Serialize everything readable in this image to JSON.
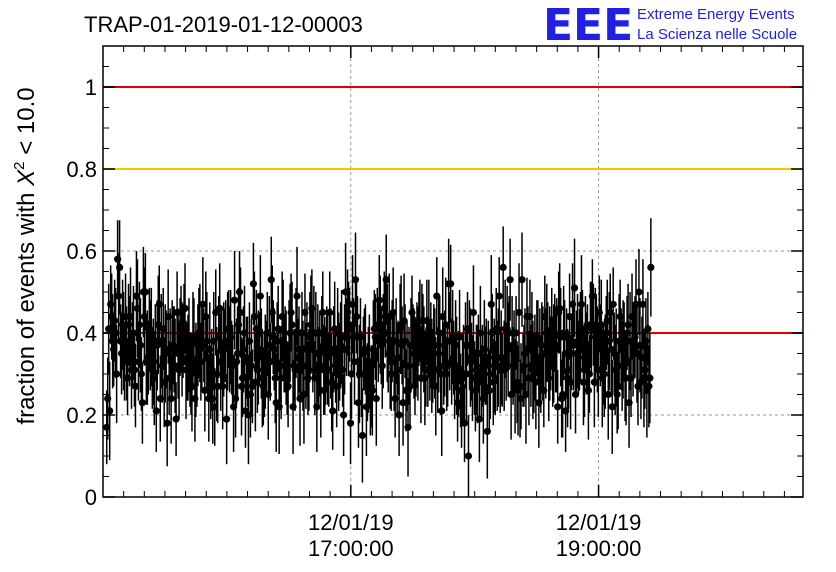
{
  "chart_data": {
    "type": "scatter",
    "title": "TRAP-01-2019-01-12-00003",
    "ylabel_prefix": "fraction of events with ",
    "ylabel_symbol": "X",
    "ylabel_exp": "2",
    "ylabel_suffix": " < 10.0",
    "ylim": [
      0,
      1.1
    ],
    "yticks": [
      "0",
      "0.2",
      "0.4",
      "0.6",
      "0.8",
      "1"
    ],
    "ytick_values": [
      0,
      0.2,
      0.4,
      0.6,
      0.8,
      1.0
    ],
    "xlim_hours": [
      15.0,
      20.65
    ],
    "xticks": [
      {
        "hour": 17.0,
        "date": "12/01/19",
        "time": "17:00:00"
      },
      {
        "hour": 19.0,
        "date": "12/01/19",
        "time": "19:00:00"
      }
    ],
    "grid": true,
    "reference_lines": [
      {
        "y": 1.0,
        "color": "#e00000"
      },
      {
        "y": 0.8,
        "color": "#ffc000"
      },
      {
        "y": 0.4,
        "color": "#e00000"
      }
    ],
    "point_color": "#000000",
    "series": [
      {
        "hours_start": 15.03,
        "hours_step": 0.008,
        "values": [
          0.17,
          0.24,
          0.41,
          0.21,
          0.47,
          0.44,
          0.38,
          0.36,
          0.43,
          0.4,
          0.3,
          0.58,
          0.49,
          0.56,
          0.38,
          0.35,
          0.42,
          0.38,
          0.33,
          0.44,
          0.35,
          0.29,
          0.42,
          0.38,
          0.44,
          0.31,
          0.37,
          0.4,
          0.31,
          0.27,
          0.49,
          0.46,
          0.33,
          0.42,
          0.37,
          0.3,
          0.23,
          0.5,
          0.44,
          0.5,
          0.33,
          0.34,
          0.34,
          0.41,
          0.37,
          0.39,
          0.31,
          0.33,
          0.29,
          0.38,
          0.21,
          0.37,
          0.42,
          0.47,
          0.24,
          0.38,
          0.32,
          0.41,
          0.28,
          0.35,
          0.36,
          0.18,
          0.44,
          0.29,
          0.36,
          0.24,
          0.36,
          0.37,
          0.36,
          0.32,
          0.19,
          0.45,
          0.35,
          0.31,
          0.39,
          0.41,
          0.36,
          0.38,
          0.42,
          0.46,
          0.31,
          0.33,
          0.34,
          0.37,
          0.31,
          0.3,
          0.27,
          0.38,
          0.39,
          0.24,
          0.31,
          0.31,
          0.37,
          0.4,
          0.4,
          0.33,
          0.37,
          0.47,
          0.37,
          0.26,
          0.44,
          0.38,
          0.34,
          0.24,
          0.36,
          0.28,
          0.31,
          0.24,
          0.38,
          0.22,
          0.45,
          0.3,
          0.27,
          0.39,
          0.46,
          0.33,
          0.37,
          0.27,
          0.36,
          0.37,
          0.38,
          0.19,
          0.38,
          0.41,
          0.36,
          0.39,
          0.34,
          0.32,
          0.22,
          0.48,
          0.24,
          0.33,
          0.35,
          0.42,
          0.5,
          0.45,
          0.27,
          0.29,
          0.36,
          0.4,
          0.21,
          0.34,
          0.33,
          0.2,
          0.38,
          0.25,
          0.32,
          0.27,
          0.52,
          0.44,
          0.28,
          0.41,
          0.31,
          0.34,
          0.36,
          0.49,
          0.35,
          0.29,
          0.27,
          0.3,
          0.33,
          0.34,
          0.4,
          0.25,
          0.37,
          0.33,
          0.53,
          0.45,
          0.39,
          0.36,
          0.29,
          0.23,
          0.38,
          0.41,
          0.22,
          0.32,
          0.29,
          0.44,
          0.41,
          0.35,
          0.36,
          0.34,
          0.29,
          0.27,
          0.37,
          0.4,
          0.45,
          0.42,
          0.22,
          0.32,
          0.31,
          0.4,
          0.49,
          0.34,
          0.36,
          0.24,
          0.32,
          0.4,
          0.32,
          0.25,
          0.45,
          0.32,
          0.36,
          0.29,
          0.31,
          0.39,
          0.42,
          0.46,
          0.36,
          0.4,
          0.29,
          0.4,
          0.22,
          0.35,
          0.32,
          0.35,
          0.26,
          0.4,
          0.45,
          0.31,
          0.32,
          0.32,
          0.36,
          0.34,
          0.31,
          0.45,
          0.35,
          0.28,
          0.21,
          0.36,
          0.41,
          0.32,
          0.27,
          0.4,
          0.33,
          0.33,
          0.37,
          0.39,
          0.31,
          0.2,
          0.36,
          0.5,
          0.39,
          0.45,
          0.41,
          0.42,
          0.18,
          0.3,
          0.47,
          0.39,
          0.33,
          0.53,
          0.44,
          0.39,
          0.23,
          0.3,
          0.39,
          0.3,
          0.15,
          0.35,
          0.36,
          0.36,
          0.22,
          0.28,
          0.31,
          0.33,
          0.24,
          0.27,
          0.26,
          0.36,
          0.41,
          0.39,
          0.24,
          0.42,
          0.38,
          0.48,
          0.42,
          0.37,
          0.32,
          0.38,
          0.46,
          0.44,
          0.53,
          0.4,
          0.35,
          0.44,
          0.33,
          0.3,
          0.38,
          0.45,
          0.33,
          0.24,
          0.38,
          0.31,
          0.34,
          0.2,
          0.41,
          0.42,
          0.37,
          0.23,
          0.43,
          0.38,
          0.26,
          0.32,
          0.17,
          0.32,
          0.27,
          0.37,
          0.45,
          0.37,
          0.35,
          0.32,
          0.34,
          0.37,
          0.35,
          0.41,
          0.43,
          0.29,
          0.4,
          0.4,
          0.36,
          0.29,
          0.31,
          0.43,
          0.33,
          0.41,
          0.33,
          0.37,
          0.32,
          0.32,
          0.37,
          0.35,
          0.27,
          0.49,
          0.31,
          0.37,
          0.4,
          0.3,
          0.21,
          0.44,
          0.32,
          0.35,
          0.42,
          0.3,
          0.32,
          0.52,
          0.38,
          0.52,
          0.33,
          0.39,
          0.34,
          0.29,
          0.37,
          0.32,
          0.23,
          0.3,
          0.39,
          0.26,
          0.22,
          0.29,
          0.3,
          0.18,
          0.37,
          0.3,
          0.41,
          0.1,
          0.37,
          0.34,
          0.33,
          0.29,
          0.45,
          0.29,
          0.26,
          0.31,
          0.3,
          0.35,
          0.19,
          0.4,
          0.28,
          0.32,
          0.24,
          0.36,
          0.32,
          0.33,
          0.16,
          0.34,
          0.26,
          0.3,
          0.47,
          0.4,
          0.28,
          0.32,
          0.29,
          0.41,
          0.32,
          0.34,
          0.49,
          0.31,
          0.34,
          0.31,
          0.56,
          0.32,
          0.41,
          0.33,
          0.41,
          0.36,
          0.4,
          0.53,
          0.25,
          0.37,
          0.32,
          0.35,
          0.27,
          0.4,
          0.28,
          0.26,
          0.45,
          0.24,
          0.27,
          0.53,
          0.31,
          0.32,
          0.35,
          0.25,
          0.44,
          0.36,
          0.29,
          0.44,
          0.32,
          0.39,
          0.31,
          0.3,
          0.34,
          0.28,
          0.39,
          0.38,
          0.23,
          0.34,
          0.3,
          0.37,
          0.35,
          0.26,
          0.44,
          0.35,
          0.4,
          0.38,
          0.29,
          0.35,
          0.35,
          0.41,
          0.33,
          0.35,
          0.4,
          0.36,
          0.37,
          0.22,
          0.45,
          0.46,
          0.39,
          0.24,
          0.25,
          0.4,
          0.39,
          0.21,
          0.35,
          0.29,
          0.31,
          0.44,
          0.28,
          0.35,
          0.47,
          0.37,
          0.51,
          0.25,
          0.35,
          0.38,
          0.34,
          0.36,
          0.39,
          0.47,
          0.41,
          0.28,
          0.31,
          0.4,
          0.35,
          0.36,
          0.26,
          0.3,
          0.42,
          0.41,
          0.49,
          0.42,
          0.28,
          0.39,
          0.4,
          0.36,
          0.31,
          0.45,
          0.37,
          0.42,
          0.29,
          0.32,
          0.3,
          0.33,
          0.4,
          0.43,
          0.25,
          0.38,
          0.45,
          0.36,
          0.22,
          0.47,
          0.35,
          0.31,
          0.34,
          0.25,
          0.27,
          0.38,
          0.44,
          0.36,
          0.32,
          0.36,
          0.38,
          0.29,
          0.29,
          0.4,
          0.42,
          0.23,
          0.38,
          0.29,
          0.44,
          0.36,
          0.38,
          0.39,
          0.47,
          0.35,
          0.27,
          0.5,
          0.37,
          0.28,
          0.34,
          0.47,
          0.29,
          0.31,
          0.38,
          0.26,
          0.41,
          0.27,
          0.29,
          0.56
        ]
      }
    ]
  },
  "logo": {
    "letters": "EEE",
    "line1": "Extreme Energy Events",
    "line2": "La Scienza nelle Scuole",
    "color": "#1f1fe6"
  }
}
